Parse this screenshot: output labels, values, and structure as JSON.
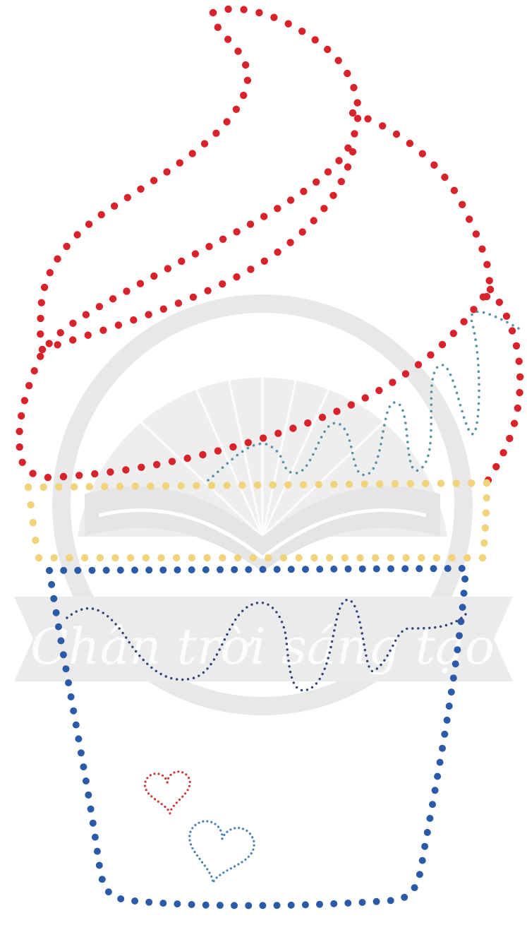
{
  "title": "",
  "watermark": {
    "text": "Chân trời sáng tạo",
    "color": "#8f8f8f"
  },
  "colors": {
    "background": "#ffffff",
    "swirl_dots": "#d8232a",
    "rim_dots": "#f2d27a",
    "cup_dots": "#2a5aa8",
    "sprinkle_swirl": "#5a8fa8",
    "cup_wave": "#33407a",
    "heart_red": "#c33a3a",
    "heart_blue": "#4a7fb3"
  },
  "icons": [
    "ice-cream-cone-drawing",
    "heart-icon",
    "publisher-logo-watermark"
  ]
}
